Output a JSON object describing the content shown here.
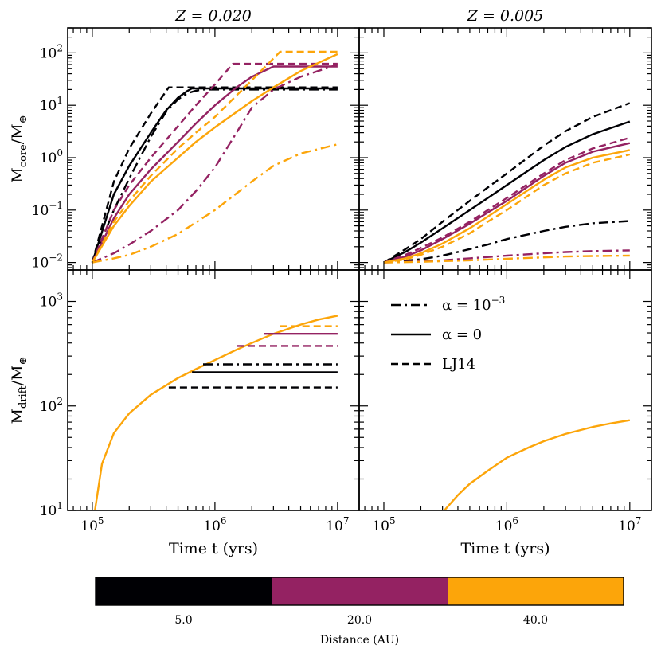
{
  "chart_data": {
    "type": "line",
    "x_scale": "log",
    "y_scale": "log",
    "xlim": [
      63000,
      15000000
    ],
    "x_ticks": [
      {
        "value": 100000,
        "label": "10^5"
      },
      {
        "value": 1000000,
        "label": "10^6"
      },
      {
        "value": 10000000,
        "label": "10^7"
      }
    ],
    "xlabel": "Time t (yrs)",
    "panels": [
      {
        "id": "core-z020",
        "title": "Z = 0.020",
        "ylabel": "M_core/M_⊕",
        "ylim": [
          0.0072,
          300
        ],
        "y_ticks": [
          {
            "value": 0.01,
            "label": "10^−2"
          },
          {
            "value": 0.1,
            "label": "10^−1"
          },
          {
            "value": 1,
            "label": "10^0"
          },
          {
            "value": 10,
            "label": "10^1"
          },
          {
            "value": 100,
            "label": "10^2"
          }
        ],
        "series": [
          {
            "distance": "5.0",
            "model": "alpha=1e-3",
            "x": [
              100000,
              150000,
              200000,
              300000,
              400000,
              500000,
              600000,
              700000,
              800000,
              10000000
            ],
            "y": [
              0.01,
              0.1,
              0.4,
              2.5,
              7.5,
              13,
              17,
              19,
              20,
              20
            ]
          },
          {
            "distance": "5.0",
            "model": "alpha=0",
            "x": [
              100000,
              150000,
              200000,
              300000,
              400000,
              500000,
              600000,
              650000,
              10000000
            ],
            "y": [
              0.01,
              0.2,
              0.7,
              3,
              8,
              14,
              19,
              21,
              21
            ]
          },
          {
            "distance": "5.0",
            "model": "LJ14",
            "x": [
              100000,
              150000,
              200000,
              300000,
              420000,
              10000000
            ],
            "y": [
              0.01,
              0.35,
              1.5,
              7,
              22,
              22
            ]
          },
          {
            "distance": "20.0",
            "model": "alpha=1e-3",
            "x": [
              100000,
              150000,
              200000,
              300000,
              500000,
              700000,
              1000000,
              1500000,
              2000000,
              3000000,
              5000000,
              10000000
            ],
            "y": [
              0.01,
              0.015,
              0.022,
              0.04,
              0.1,
              0.23,
              0.65,
              3,
              9,
              20,
              35,
              60
            ]
          },
          {
            "distance": "20.0",
            "model": "alpha=0",
            "x": [
              100000,
              150000,
              200000,
              300000,
              500000,
              700000,
              1000000,
              1500000,
              2000000,
              3000000,
              10000000
            ],
            "y": [
              0.01,
              0.07,
              0.2,
              0.6,
              2,
              4.5,
              10,
              22,
              35,
              55,
              55
            ]
          },
          {
            "distance": "20.0",
            "model": "LJ14",
            "x": [
              100000,
              150000,
              200000,
              300000,
              500000,
              700000,
              1000000,
              1400000,
              10000000
            ],
            "y": [
              0.01,
              0.1,
              0.3,
              1,
              4,
              10,
              25,
              62,
              62
            ]
          },
          {
            "distance": "40.0",
            "model": "alpha=1e-3",
            "x": [
              100000,
              150000,
              200000,
              300000,
              500000,
              1000000,
              2000000,
              3000000,
              5000000,
              10000000
            ],
            "y": [
              0.01,
              0.012,
              0.014,
              0.02,
              0.035,
              0.1,
              0.35,
              0.7,
              1.2,
              1.8
            ]
          },
          {
            "distance": "40.0",
            "model": "alpha=0",
            "x": [
              100000,
              150000,
              200000,
              300000,
              500000,
              700000,
              1000000,
              2000000,
              3000000,
              5000000,
              10000000
            ],
            "y": [
              0.01,
              0.05,
              0.12,
              0.35,
              1,
              2,
              3.8,
              12,
              22,
              45,
              95
            ]
          },
          {
            "distance": "40.0",
            "model": "LJ14",
            "x": [
              100000,
              150000,
              200000,
              300000,
              500000,
              700000,
              1000000,
              2000000,
              3400000,
              10000000
            ],
            "y": [
              0.01,
              0.06,
              0.15,
              0.45,
              1.5,
              3,
              6,
              30,
              105,
              105
            ]
          }
        ]
      },
      {
        "id": "core-z005",
        "title": "Z = 0.005",
        "ylabel": "",
        "ylim": [
          0.0072,
          300
        ],
        "y_ticks": [],
        "series": [
          {
            "distance": "5.0",
            "model": "alpha=1e-3",
            "x": [
              100000,
              200000,
              300000,
              500000,
              700000,
              1000000,
              2000000,
              3000000,
              5000000,
              10000000
            ],
            "y": [
              0.01,
              0.0115,
              0.0135,
              0.018,
              0.022,
              0.028,
              0.04,
              0.048,
              0.056,
              0.062
            ]
          },
          {
            "distance": "5.0",
            "model": "alpha=0",
            "x": [
              100000,
              150000,
              200000,
              300000,
              500000,
              700000,
              1000000,
              2000000,
              3000000,
              5000000,
              10000000
            ],
            "y": [
              0.01,
              0.016,
              0.024,
              0.045,
              0.1,
              0.17,
              0.3,
              0.9,
              1.6,
              2.8,
              4.9
            ]
          },
          {
            "distance": "5.0",
            "model": "LJ14",
            "x": [
              100000,
              150000,
              200000,
              300000,
              500000,
              700000,
              1000000,
              2000000,
              3000000,
              5000000,
              10000000
            ],
            "y": [
              0.01,
              0.018,
              0.028,
              0.06,
              0.15,
              0.27,
              0.5,
              1.7,
              3.2,
              6,
              11
            ]
          },
          {
            "distance": "20.0",
            "model": "alpha=1e-3",
            "x": [
              100000,
              200000,
              300000,
              500000,
              1000000,
              2000000,
              3000000,
              5000000,
              10000000
            ],
            "y": [
              0.01,
              0.0105,
              0.011,
              0.012,
              0.0135,
              0.015,
              0.0158,
              0.0165,
              0.017
            ]
          },
          {
            "distance": "20.0",
            "model": "alpha=0",
            "x": [
              100000,
              150000,
              200000,
              300000,
              500000,
              700000,
              1000000,
              2000000,
              3000000,
              5000000,
              10000000
            ],
            "y": [
              0.01,
              0.013,
              0.017,
              0.028,
              0.055,
              0.09,
              0.15,
              0.45,
              0.8,
              1.3,
              1.9
            ]
          },
          {
            "distance": "20.0",
            "model": "LJ14",
            "x": [
              100000,
              150000,
              200000,
              300000,
              500000,
              700000,
              1000000,
              2000000,
              3000000,
              5000000,
              10000000
            ],
            "y": [
              0.01,
              0.014,
              0.019,
              0.03,
              0.06,
              0.1,
              0.17,
              0.5,
              0.9,
              1.5,
              2.4
            ]
          },
          {
            "distance": "40.0",
            "model": "alpha=1e-3",
            "x": [
              100000,
              200000,
              300000,
              500000,
              1000000,
              2000000,
              3000000,
              5000000,
              10000000
            ],
            "y": [
              0.01,
              0.0103,
              0.0106,
              0.011,
              0.0118,
              0.0125,
              0.013,
              0.0133,
              0.0135
            ]
          },
          {
            "distance": "40.0",
            "model": "alpha=0",
            "x": [
              100000,
              150000,
              200000,
              300000,
              500000,
              700000,
              1000000,
              2000000,
              3000000,
              5000000,
              10000000
            ],
            "y": [
              0.01,
              0.012,
              0.015,
              0.023,
              0.045,
              0.075,
              0.13,
              0.38,
              0.65,
              1,
              1.4
            ]
          },
          {
            "distance": "40.0",
            "model": "LJ14",
            "x": [
              100000,
              150000,
              200000,
              300000,
              500000,
              700000,
              1000000,
              2000000,
              3000000,
              5000000,
              10000000
            ],
            "y": [
              0.01,
              0.0115,
              0.014,
              0.02,
              0.036,
              0.06,
              0.1,
              0.3,
              0.5,
              0.8,
              1.15
            ]
          }
        ]
      },
      {
        "id": "drift-z020",
        "title": "",
        "ylabel": "M_drift/M_⊕",
        "ylim": [
          10,
          2000
        ],
        "y_ticks": [
          {
            "value": 10,
            "label": "10^1"
          },
          {
            "value": 100,
            "label": "10^2"
          },
          {
            "value": 1000,
            "label": "10^3"
          }
        ],
        "series": [
          {
            "distance": "all",
            "model": "drift",
            "x": [
              105000,
              120000,
              150000,
              200000,
              300000,
              500000,
              700000,
              1000000,
              1500000,
              2000000,
              3000000,
              5000000,
              7000000,
              10000000
            ],
            "y": [
              10,
              28,
              55,
              85,
              128,
              185,
              225,
              275,
              345,
              400,
              490,
              600,
              670,
              730
            ]
          },
          {
            "distance": "5.0",
            "model": "alpha=1e-3",
            "x": [
              800000,
              10000000
            ],
            "y": [
              250,
              250
            ]
          },
          {
            "distance": "5.0",
            "model": "alpha=0",
            "x": [
              650000,
              10000000
            ],
            "y": [
              210,
              210
            ]
          },
          {
            "distance": "5.0",
            "model": "LJ14",
            "x": [
              420000,
              10000000
            ],
            "y": [
              150,
              150
            ]
          },
          {
            "distance": "20.0",
            "model": "alpha=0",
            "x": [
              2500000,
              10000000
            ],
            "y": [
              490,
              490
            ]
          },
          {
            "distance": "20.0",
            "model": "LJ14",
            "x": [
              1500000,
              10000000
            ],
            "y": [
              375,
              375
            ]
          },
          {
            "distance": "40.0",
            "model": "LJ14",
            "x": [
              3400000,
              10000000
            ],
            "y": [
              580,
              580
            ]
          }
        ]
      },
      {
        "id": "drift-z005",
        "title": "",
        "ylabel": "",
        "ylim": [
          10,
          2000
        ],
        "y_ticks": [],
        "series": [
          {
            "distance": "all",
            "model": "drift",
            "x": [
              310000,
              400000,
              500000,
              700000,
              1000000,
              1500000,
              2000000,
              3000000,
              5000000,
              7000000,
              10000000
            ],
            "y": [
              10,
              14,
              18,
              24,
              32,
              40,
              46,
              54,
              63,
              68,
              73
            ]
          }
        ]
      }
    ],
    "legend": {
      "placement": "upper center of lower-right panel",
      "entries": [
        {
          "style": "dashdot",
          "label": "α = 10^−3"
        },
        {
          "style": "solid",
          "label": "α = 0"
        },
        {
          "style": "dashed",
          "label": "LJ14"
        }
      ]
    },
    "colorbar": {
      "label": "Distance (AU)",
      "segments": [
        {
          "label": "5.0",
          "color": "#000004"
        },
        {
          "label": "20.0",
          "color": "#942262"
        },
        {
          "label": "40.0",
          "color": "#fca50a"
        }
      ]
    }
  }
}
